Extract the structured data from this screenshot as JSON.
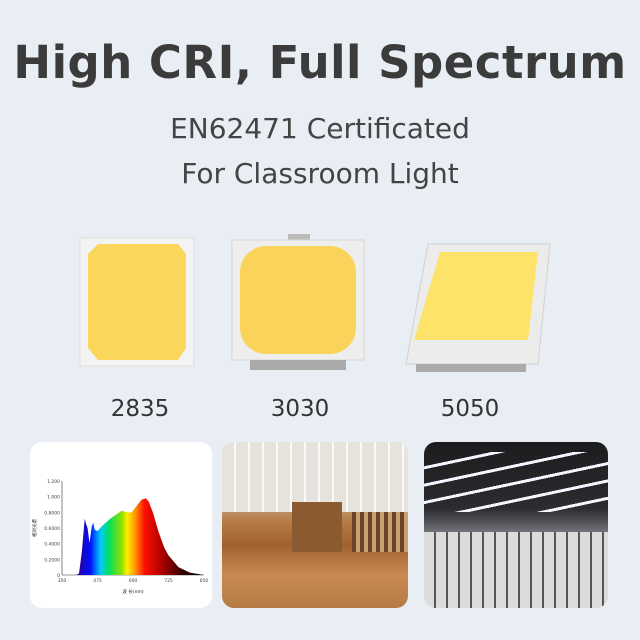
{
  "header": {
    "title": "High CRI, Full Spectrum",
    "subtitle_line1": "EN62471 Certificated",
    "subtitle_line2": "For Classroom Light"
  },
  "chips": [
    {
      "label": "2835"
    },
    {
      "label": "3030"
    },
    {
      "label": "5050"
    }
  ],
  "colors": {
    "background": "#e9eef5",
    "chip_yellow": "#fbd75a",
    "chip_body": "#f1f1f1"
  },
  "chart_data": {
    "type": "area",
    "xlabel": "波 长(nm)",
    "ylabel": "相对光谱",
    "xlim": [
      350,
      850
    ],
    "ylim": [
      0,
      1.2
    ],
    "x_ticks": [
      "350",
      "475",
      "600",
      "725",
      "850"
    ],
    "y_ticks": [
      "0",
      "0.2000",
      "0.4000",
      "0.6000",
      "0.8000",
      "1.000",
      "1.200"
    ],
    "x": [
      350,
      400,
      410,
      420,
      430,
      435,
      440,
      447,
      455,
      460,
      465,
      475,
      490,
      520,
      560,
      580,
      595,
      610,
      630,
      645,
      655,
      670,
      690,
      710,
      725,
      760,
      800,
      850
    ],
    "values": [
      0,
      0,
      0.02,
      0.3,
      0.72,
      0.65,
      0.6,
      0.41,
      0.62,
      0.67,
      0.58,
      0.56,
      0.62,
      0.72,
      0.82,
      0.8,
      0.8,
      0.87,
      0.96,
      0.98,
      0.94,
      0.8,
      0.55,
      0.35,
      0.25,
      0.1,
      0.03,
      0
    ],
    "fill": "visible-spectrum gradient",
    "grid": false
  }
}
